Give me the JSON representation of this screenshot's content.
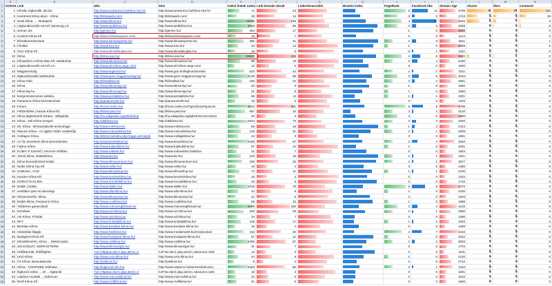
{
  "column_letters": [
    "A",
    "B",
    "C",
    "D",
    "E",
    "F",
    "G",
    "H",
    "I",
    "J",
    "K",
    "L",
    "M",
    "N",
    "O",
    "P",
    "Q",
    "R"
  ],
  "headers": [
    "GOOGLE pozíció",
    "Link",
    "URL",
    "Item",
    "Külső linkek száma",
    "Link Domain darab",
    "Linkrelevanciális",
    "Bizalmi index",
    "PageRank",
    "Facebook like",
    "domain Age",
    "shares",
    "likes",
    "comment"
  ],
  "rows": [
    {
      "pos": "1",
      "title": "Klímák, légkondik, akciós",
      "url": "http://www.arukereso.hu/klima-c5172/",
      "item": "http://www.arukereso.hu/klima-c5172/",
      "ext": "71",
      "dom": "23",
      "pr": "5",
      "fb": "11",
      "age": "3709",
      "sh": "11",
      "lk": "51",
      "cm": "113"
    },
    {
      "pos": "2",
      "title": "Inverteres klíma akció - Klíma",
      "url": "http://klimaweb.com/",
      "item": "http://klimaweb.com/",
      "ext": "28",
      "dom": "14",
      "pr": "3",
      "fb": "2",
      "age": "1744",
      "sh": "5",
      "lk": "8",
      "cm": "25"
    },
    {
      "pos": "3",
      "title": "Nosti klíma ... - Budapest",
      "url": "http://www.klima.hu/",
      "item": "http://www.klima.hu/",
      "ext": "15289",
      "dom": "230",
      "pr": "4",
      "fb": "17",
      "age": "4534",
      "sh": "6",
      "lk": "7",
      "cm": "3"
    },
    {
      "pos": "4",
      "title": "Légkondicionáló AKCIÓ Samsung LG",
      "url": "http://www.webklima.hu/",
      "item": "http://www.webklima.hu/",
      "ext": "8219",
      "dom": "85",
      "pr": "3",
      "fb": "3",
      "age": "2938",
      "sh": "0",
      "lk": "2",
      "cm": "5"
    },
    {
      "pos": "5",
      "title": "Gemec Zrt.",
      "url": "http://gemec.hu/",
      "item": "http://gemec.hu/",
      "ext": "304",
      "dom": "17",
      "pr": "-1",
      "fb": "0",
      "age": "6000",
      "sh": "0",
      "lk": "0",
      "cm": "0"
    },
    {
      "pos": "6",
      "title": "Komfort Klíma Kft",
      "url": "http://klima-klimaexpress.com/",
      "item": "http://klima-klimaexpress.com/",
      "ext": "19",
      "dom": "7",
      "pr": "0",
      "fb": "0",
      "age": "1124",
      "sh": "0",
      "lk": "0",
      "cm": "0"
    },
    {
      "pos": "7",
      "title": "klímaberendezések",
      "url": "http://www.klimaexpress.hu/",
      "item": "http://www.klimaexpress.hu/",
      "ext": "365",
      "dom": "31",
      "pr": "2",
      "fb": "3",
      "age": "2611",
      "sh": "0",
      "lk": "0",
      "cm": "1"
    },
    {
      "pos": "8",
      "title": "Főoldal",
      "url": "http://www.tres.hu/",
      "item": "http://www.tres.hu/",
      "ext": "44",
      "dom": "12",
      "pr": "1",
      "fb": "0",
      "age": "5099",
      "sh": "0",
      "lk": "0",
      "cm": "0"
    },
    {
      "pos": "9",
      "title": "OXX Klíma Kft.",
      "url": "http://www.klimafelujitas.hu/",
      "item": "http://www.klimafelujitas.hu/",
      "ext": "15",
      "dom": "5",
      "pr": "0",
      "fb": "1",
      "age": "2211",
      "sh": "0",
      "lk": "0",
      "cm": "0"
    },
    {
      "pos": "10",
      "title": "Klíma",
      "url": "http://klima.sas.hu/",
      "item": "http://klima.sas.hu/",
      "ext": "23920",
      "dom": "412",
      "pr": "4",
      "fb": "6",
      "age": "5520",
      "sh": "1",
      "lk": "1",
      "cm": "0"
    },
    {
      "pos": "11",
      "title": "Klímaüzlet a Klíma Max Kft. webáruház",
      "url": "http://www.klimamax.hu/",
      "item": "http://www.klimamax.hu/",
      "ext": "98",
      "dom": "19",
      "pr": "2",
      "fb": "4",
      "age": "2430",
      "sh": "0",
      "lk": "0",
      "cm": "0"
    },
    {
      "pos": "12",
      "title": "Légkondicionáló AKCIÓ LG",
      "url": "http://www.ah-klima-vega.com/",
      "item": "http://www.ah-klima-vega.com/",
      "ext": "12",
      "dom": "6",
      "pr": "0",
      "fb": "0",
      "age": "1500",
      "sh": "0",
      "lk": "0",
      "cm": "0"
    },
    {
      "pos": "13",
      "title": "Magyarország",
      "url": "http://www.legkondi.hu/",
      "item": "http://www.gon.hu/legkondicionalo",
      "ext": "510",
      "dom": "44",
      "pr": "2",
      "fb": "1",
      "age": "3211",
      "sh": "0",
      "lk": "0",
      "cm": "0"
    },
    {
      "pos": "14",
      "title": "légkondicionáló webáruház",
      "url": "http://www.gree-magyarorszag.hu/",
      "item": "http://www.gree-magyarorszag.hu/",
      "ext": "2138",
      "dom": "98",
      "pr": "3",
      "fb": "5",
      "age": "4010",
      "sh": "0",
      "lk": "0",
      "cm": "0"
    },
    {
      "pos": "15",
      "title": "Klíma Klub",
      "url": "http://klimaklub.hu/",
      "item": "http://klimaklub.hu/",
      "ext": "230",
      "dom": "22",
      "pr": "2",
      "fb": "2",
      "age": "2801",
      "sh": "0",
      "lk": "0",
      "cm": "0"
    },
    {
      "pos": "16",
      "title": "Klíma",
      "url": "http://www.klima-lap.hu/",
      "item": "http://www.klima-lap.hu/",
      "ext": "40",
      "dom": "9",
      "pr": "1",
      "fb": "0",
      "age": "1960",
      "sh": "0",
      "lk": "0",
      "cm": "0"
    },
    {
      "pos": "17",
      "title": "Klíma-lap.hu",
      "url": "http://www.klima-lap.hu/",
      "item": "http://www.klima-lap.hu/",
      "ext": "31",
      "dom": "8",
      "pr": "1",
      "fb": "0",
      "age": "1960",
      "sh": "0",
      "lk": "0",
      "cm": "0"
    },
    {
      "pos": "18",
      "title": "kompromisszumos webáru",
      "url": "http://www.pentaklima.hu/",
      "item": "http://www.pentaklima.hu/",
      "ext": "66",
      "dom": "14",
      "pr": "1",
      "fb": "1",
      "age": "2301",
      "sh": "0",
      "lk": "0",
      "cm": "0"
    },
    {
      "pos": "19",
      "title": "Panasonic klíma berendezések",
      "url": "http://panasonic80.hu/",
      "item": "http://panasonic80.hu/",
      "ext": "18",
      "dom": "5",
      "pr": "0",
      "fb": "0",
      "age": "1203",
      "sh": "0",
      "lk": "0",
      "cm": "0"
    },
    {
      "pos": "20",
      "title": "Fórum",
      "url": "http://forum.index.hu/",
      "item": "http://forum.index.hu/Topic/showTopicList",
      "ext": "4810",
      "dom": "301",
      "pr": "5",
      "fb": "8",
      "age": "4799",
      "sh": "0",
      "lk": "0",
      "cm": "0"
    },
    {
      "pos": "21",
      "title": "FeliZertDiké | Kassai Klíma Kft.",
      "url": "http://klima-pest.hu/",
      "item": "http://klima-pest.hu/",
      "ext": "697",
      "dom": "34",
      "pr": "2",
      "fb": "1",
      "age": "3120",
      "sh": "0",
      "lk": "0",
      "cm": "0"
    },
    {
      "pos": "22",
      "title": "Klíma légkörtemtő leírása - Wikipédia",
      "url": "http://hu.wikipedia.org/wiki/Klíma",
      "item": "http://hu.wikipedia.org/wiki/Kl%C3%ADma",
      "ext": "20",
      "dom": "3",
      "pr": "3",
      "fb": "0",
      "age": "4980",
      "sh": "0",
      "lk": "0",
      "cm": "0"
    },
    {
      "pos": "23",
      "title": "Klíma - Dél Klíma Szeged",
      "url": "http://delklima.hu/",
      "item": "http://delklima.hu/",
      "ext": "2044",
      "dom": "73",
      "pr": "2",
      "fb": "3",
      "age": "3200",
      "sh": "0",
      "lk": "0",
      "cm": "0"
    },
    {
      "pos": "24",
      "title": "Mr. Klíma - klímaszaküzlet technológia",
      "url": "http://www.mrklima.hu/",
      "item": "http://www.mrklima.hu/",
      "ext": "86",
      "dom": "16",
      "pr": "1",
      "fb": "2",
      "age": "2444",
      "sh": "0",
      "lk": "0",
      "cm": "0"
    },
    {
      "pos": "25",
      "title": "Minuszi Klíma - Az éjjeliör hűtés szakértője",
      "url": "http://www.minuszklima.hu/",
      "item": "http://www.minuszklima.hu/",
      "ext": "133",
      "dom": "21",
      "pr": "2",
      "fb": "1",
      "age": "2609",
      "sh": "0",
      "lk": "0",
      "cm": "0"
    },
    {
      "pos": "26",
      "title": "Csillagos Klíma",
      "url": "http://klima.hu/index.php?page=termekek",
      "item": "http://www.csillagklima.hu/",
      "ext": "44",
      "dom": "9",
      "pr": "0",
      "fb": "0",
      "age": "1801",
      "sh": "0",
      "lk": "0",
      "cm": "0"
    },
    {
      "pos": "27",
      "title": "Az Ön inverteres klíma berendezése",
      "url": "http://www.keveklima.hu/",
      "item": "http://www.keveklima.hu/",
      "ext": "2408",
      "dom": "97",
      "pr": "2",
      "fb": "4",
      "age": "3540",
      "sh": "0",
      "lk": "0",
      "cm": "0"
    },
    {
      "pos": "28",
      "title": "Fujitsu Klíma",
      "url": "http://www.fujitsuklima.hu/",
      "item": "http://www.fujitsuklima.hu/",
      "ext": "57",
      "dom": "12",
      "pr": "1",
      "fb": "0",
      "age": "2001",
      "sh": "0",
      "lk": "0",
      "cm": "0"
    },
    {
      "pos": "29",
      "title": "KLÍMA IT Szerelő | VAHAVA Hűtőtan",
      "url": "http://www.vahava.hu/",
      "item": "http://www.vahavahaz.hu/klima",
      "ext": "31",
      "dom": "7",
      "pr": "0",
      "fb": "0",
      "age": "1504",
      "sh": "0",
      "lk": "0",
      "cm": "0"
    },
    {
      "pos": "30",
      "title": "Jármű klíma, Raktárklíma",
      "url": "http://www.ktv.hu/",
      "item": "http://www.ktv.hu/",
      "ext": "120",
      "dom": "18",
      "pr": "2",
      "fb": "1",
      "age": "3311",
      "sh": "0",
      "lk": "0",
      "cm": "0"
    },
    {
      "pos": "31",
      "title": "Klíma berendezések kiváló",
      "url": "http://www.klimacentrum.hu/",
      "item": "http://www.klimacentrum.hu/",
      "ext": "208",
      "dom": "25",
      "pr": "2",
      "fb": "1",
      "age": "2877",
      "sh": "0",
      "lk": "0",
      "cm": "0"
    },
    {
      "pos": "32",
      "title": "Neike Klíma Top Kft",
      "url": "http://www.neike.hu/",
      "item": "http://www.neike.hu/",
      "ext": "19",
      "dom": "4",
      "pr": "0",
      "fb": "0",
      "age": "1455",
      "sh": "0",
      "lk": "0",
      "cm": "0"
    },
    {
      "pos": "33",
      "title": "SABIANA, ACM",
      "url": "http://www.klimashop.hu/",
      "item": "http://www.klimashop.hu/",
      "ext": "72",
      "dom": "11",
      "pr": "1",
      "fb": "1",
      "age": "2100",
      "sh": "0",
      "lk": "0",
      "cm": "0"
    },
    {
      "pos": "34",
      "title": "Keszter Klíma Kft.",
      "url": "http://www.keszterklima.hu/",
      "item": "http://www.keszterklima.hu/",
      "ext": "15",
      "dom": "4",
      "pr": "0",
      "fb": "0",
      "age": "1322",
      "sh": "0",
      "lk": "0",
      "cm": "0"
    },
    {
      "pos": "35",
      "title": "HORVÁTH KLÍMA",
      "url": "http://www.horvathklima.hu/",
      "item": "http://www.horvathklima.hu/",
      "ext": "28",
      "dom": "6",
      "pr": "0",
      "fb": "0",
      "age": "1733",
      "sh": "0",
      "lk": "0",
      "cm": "0"
    },
    {
      "pos": "36",
      "title": "Daikin | Daikin",
      "url": "http://www.daikin.hu/",
      "item": "http://www.daikin.hu/",
      "ext": "2015",
      "dom": "78",
      "pr": "5",
      "fb": "9",
      "age": "4670",
      "sh": "0",
      "lk": "0",
      "cm": "0"
    },
    {
      "pos": "37",
      "title": "ventilátor ipari és lakossági",
      "url": "http://www.afta-klima.hu/",
      "item": "http://www.afta-klima.hu/",
      "ext": "44",
      "dom": "8",
      "pr": "1",
      "fb": "0",
      "age": "2230",
      "sh": "0",
      "lk": "0",
      "cm": "0"
    },
    {
      "pos": "38",
      "title": "Klímaszerelés, klíma",
      "url": "http://www.klimaszep.hu/",
      "item": "http://www.klimaszep.hu/",
      "ext": "21",
      "dom": "5",
      "pr": "0",
      "fb": "0",
      "age": "1603",
      "sh": "0",
      "lk": "0",
      "cm": "0"
    },
    {
      "pos": "39",
      "title": "Daikin klíma, Panasonic klíma",
      "url": "http://www.coolklima.hu/",
      "item": "http://www.coolklima.hu/",
      "ext": "55",
      "dom": "10",
      "pr": "1",
      "fb": "0",
      "age": "1988",
      "sh": "0",
      "lk": "0",
      "cm": "0"
    },
    {
      "pos": "40",
      "title": "Többéves garanciával",
      "url": "http://www.minuszegklimak.hu/",
      "item": "http://www.minuszegklimak.hu/",
      "ext": "8788",
      "dom": "160",
      "pr": "3",
      "fb": "4",
      "age": "4120",
      "sh": "0",
      "lk": "0",
      "cm": "0"
    },
    {
      "pos": "41",
      "title": "termékek",
      "url": "http://www.vizi-klima.hu/",
      "item": "http://www.vizi-klima.hu/",
      "ext": "349",
      "dom": "29",
      "pr": "2",
      "fb": "1",
      "age": "2650",
      "sh": "0",
      "lk": "0",
      "cm": "0"
    },
    {
      "pos": "42",
      "title": "AD Klíma: Főoldal",
      "url": "http://www.ad-klima.hu/",
      "item": "http://www.ad-klima.hu/",
      "ext": "33",
      "dom": "7",
      "pr": "0",
      "fb": "0",
      "age": "1390",
      "sh": "0",
      "lk": "0",
      "cm": "0"
    },
    {
      "pos": "43",
      "title": "NFY",
      "url": "http://www.kristalyklima.hu/",
      "item": "http://www.kristalyklima.hu/",
      "ext": "119",
      "dom": "17",
      "pr": "1",
      "fb": "1",
      "age": "2203",
      "sh": "0",
      "lk": "0",
      "cm": "0"
    },
    {
      "pos": "44",
      "title": "Bertalan Klíma",
      "url": "http://www.bertalan-klima.hu/",
      "item": "http://www.bertalan-klima.hu/",
      "ext": "18",
      "dom": "4",
      "pr": "0",
      "fb": "0",
      "age": "1288",
      "sh": "0",
      "lk": "0",
      "cm": "0"
    },
    {
      "pos": "45",
      "title": "Háztartási klagép",
      "url": "http://www.hazklima.hu/",
      "item": "http://www.mediamarkt.hu/mcs/product",
      "ext": "410",
      "dom": "40",
      "pr": "4",
      "fb": "7",
      "age": "4410",
      "sh": "0",
      "lk": "0",
      "cm": "0"
    },
    {
      "pos": "46",
      "title": "Budapest Klíma Kft.",
      "url": "http://www.budapest-klima.hu/",
      "item": "http://www.budapest-klima.hu/",
      "ext": "67",
      "dom": "11",
      "pr": "1",
      "fb": "0",
      "age": "2022",
      "sh": "0",
      "lk": "0",
      "cm": "0"
    },
    {
      "pos": "47",
      "title": "Klímafelmérés, Klíma ... Békéscsaba",
      "url": "http://www.cstklima.hu/",
      "item": "http://www.cstklima.hu/",
      "ext": "2400",
      "dom": "87",
      "pr": "2",
      "fb": "2",
      "age": "3003",
      "sh": "0",
      "lk": "0",
      "cm": "0"
    },
    {
      "pos": "48",
      "title": "SZAKÜZLET, SZERVIZTERM",
      "url": "http://www.klimasziget.hu/",
      "item": "http://www.klimasziget.hu/",
      "ext": "31",
      "dom": "7",
      "pr": "0",
      "fb": "0",
      "age": "1704",
      "sh": "0",
      "lk": "0",
      "cm": "0"
    },
    {
      "pos": "49",
      "title": "Hűtőkamrák, hűtőlégkört",
      "url": "?url=http&sa=t&rct=j&q=&esrc=s",
      "item": "/url?sa=t&rct=j&q=&esrc=s&source=web",
      "ext": "12",
      "dom": "3",
      "pr": "0",
      "fb": "0",
      "age": "1101",
      "sh": "0",
      "lk": "0",
      "cm": "0"
    },
    {
      "pos": "50",
      "title": "Unió Klíma",
      "url": "http://www.unio-klima.hu/",
      "item": "http://www.unio-klima.hu/",
      "ext": "44",
      "dom": "9",
      "pr": "1",
      "fb": "0",
      "age": "2130",
      "sh": "0",
      "lk": "0",
      "cm": "0"
    },
    {
      "pos": "51",
      "title": "FS Klíma: Bemutatkozás",
      "url": "http://pxklima.hu/",
      "item": "http://pxklima.hu/",
      "ext": "9",
      "dom": "2",
      "pr": "0",
      "fb": "0",
      "age": "2712",
      "sh": "0",
      "lk": "0",
      "cm": "0"
    },
    {
      "pos": "52",
      "title": "Klíma - CONFIDEE Hűtéstan ...",
      "url": "http://legkondi-info.hu/",
      "item": "http://www.netprice.hu/kereses/kulcsszo",
      "ext": "2403",
      "dom": "80",
      "pr": "2",
      "fb": "1",
      "age": "3110",
      "sh": "0",
      "lk": "0",
      "cm": "0"
    },
    {
      "pos": "53",
      "title": "légkondi online ... 10 ... legkondi",
      "url": "?url=http&sa=t&rct=j&q=&esrc=s",
      "item": "/url?sa=t&rct=j&q=&esrc=s&source=web",
      "ext": "16",
      "dom": "4",
      "pr": "0",
      "fb": "0",
      "age": "1601",
      "sh": "0",
      "lk": "0",
      "cm": "0"
    },
    {
      "pos": "54",
      "title": "Lakásra munkák ... Debrecen",
      "url": "http://www.marcusklima.hu/",
      "item": "http://www.marcusklima.hu/",
      "ext": "22",
      "dom": "5",
      "pr": "0",
      "fb": "0",
      "age": "1510",
      "sh": "0",
      "lk": "0",
      "cm": "0"
    },
    {
      "pos": "55",
      "title": "Rivill Klíma Kft.",
      "url": "http://www.rivillklima.hu/",
      "item": "http://www.rivillklima.hu/",
      "ext": "31",
      "dom": "6",
      "pr": "0",
      "fb": "0",
      "age": "1650",
      "sh": "0",
      "lk": "0",
      "cm": "0"
    }
  ],
  "colors": {
    "green": "#63be7b",
    "red": "#f8696b",
    "blue": "#2b83d8",
    "orange": "#f6b24d",
    "highlight": "#c8262e"
  },
  "highlighted_rows": [
    6,
    10
  ]
}
